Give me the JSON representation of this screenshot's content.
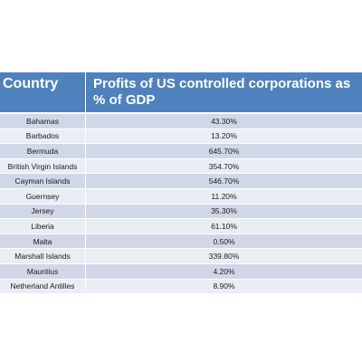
{
  "chart_data": {
    "type": "table",
    "columns": [
      "Country",
      "Profits of US controlled corporations as % of GDP"
    ],
    "rows": [
      [
        "Bahamas",
        "43.30%"
      ],
      [
        "Barbados",
        "13.20%"
      ],
      [
        "Bermuda",
        "645.70%"
      ],
      [
        "British Virgin Islands",
        "354.70%"
      ],
      [
        "Cayman Islands",
        "546.70%"
      ],
      [
        "Guernsey",
        "11.20%"
      ],
      [
        "Jersey",
        "35.30%"
      ],
      [
        "Liberia",
        "61.10%"
      ],
      [
        "Malta",
        "0.50%"
      ],
      [
        "Marshall Islands",
        "339.80%"
      ],
      [
        "Mauritius",
        "4.20%"
      ],
      [
        "Netherland Antilles",
        "8.90%"
      ]
    ]
  },
  "colors": {
    "header_bg": "#4f81bd",
    "row_odd": "#d0d8e8",
    "row_even": "#e9edf4"
  }
}
